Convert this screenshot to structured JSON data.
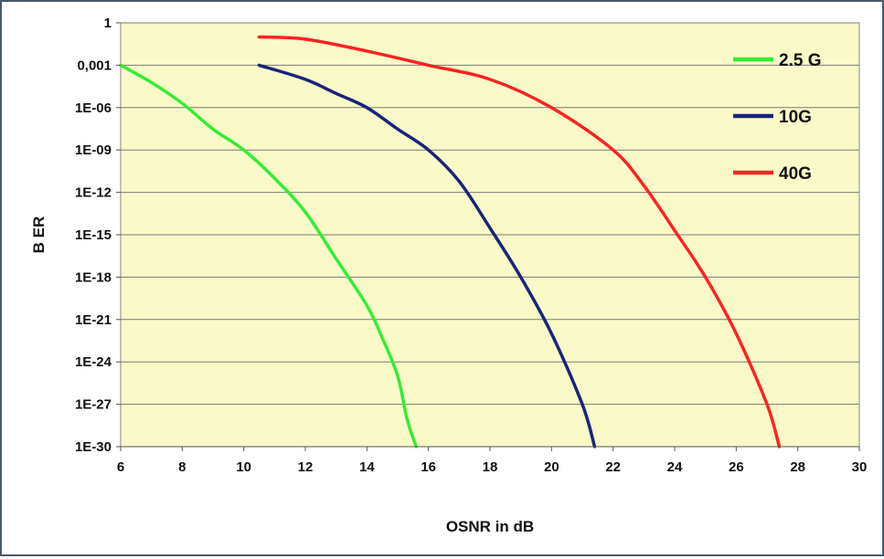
{
  "chart_data": {
    "type": "line",
    "title": "",
    "xlabel": "OSNR in dB",
    "ylabel": "B ER",
    "xlim": [
      6,
      30
    ],
    "x_ticks": [
      6,
      8,
      10,
      12,
      14,
      16,
      18,
      20,
      22,
      24,
      26,
      28,
      30
    ],
    "y_scale": "log",
    "y_ticks": [
      {
        "label": "1",
        "exp": 0
      },
      {
        "label": "0,001",
        "exp": -3
      },
      {
        "label": "1E-06",
        "exp": -6
      },
      {
        "label": "1E-09",
        "exp": -9
      },
      {
        "label": "1E-12",
        "exp": -12
      },
      {
        "label": "1E-15",
        "exp": -15
      },
      {
        "label": "1E-18",
        "exp": -18
      },
      {
        "label": "1E-21",
        "exp": -21
      },
      {
        "label": "1E-24",
        "exp": -24
      },
      {
        "label": "1E-27",
        "exp": -27
      },
      {
        "label": "1E-30",
        "exp": -30
      }
    ],
    "grid": {
      "horizontal": true,
      "vertical": false
    },
    "legend_position": "top-right",
    "plot_background": "#fafac8",
    "series": [
      {
        "name": "2.5 G",
        "color": "#33ee33",
        "points": [
          [
            6,
            0.001
          ],
          [
            7,
            6e-05
          ],
          [
            8,
            2e-06
          ],
          [
            9,
            3e-08
          ],
          [
            10,
            1e-09
          ],
          [
            11,
            1e-11
          ],
          [
            12,
            4e-14
          ],
          [
            13,
            2e-17
          ],
          [
            14,
            1e-20
          ],
          [
            14.5,
            5e-23
          ],
          [
            15,
            1e-25
          ],
          [
            15.3,
            1e-28
          ],
          [
            15.6,
            1e-30
          ]
        ]
      },
      {
        "name": "10G",
        "color": "#1a237e",
        "points": [
          [
            10.5,
            0.001
          ],
          [
            12,
            0.0001
          ],
          [
            13,
            1e-05
          ],
          [
            14,
            1e-06
          ],
          [
            15,
            3e-08
          ],
          [
            16,
            1e-09
          ],
          [
            17,
            6e-12
          ],
          [
            18,
            3e-15
          ],
          [
            19,
            1e-18
          ],
          [
            20,
            1e-22
          ],
          [
            21,
            1e-27
          ],
          [
            21.4,
            1e-30
          ]
        ]
      },
      {
        "name": "40G",
        "color": "#ff2222",
        "points": [
          [
            10.5,
            0.1
          ],
          [
            12,
            0.07
          ],
          [
            14,
            0.01
          ],
          [
            16,
            0.001
          ],
          [
            18,
            0.0001
          ],
          [
            20,
            1e-06
          ],
          [
            22,
            1e-09
          ],
          [
            23,
            3e-12
          ],
          [
            24,
            2e-15
          ],
          [
            25,
            1e-18
          ],
          [
            26,
            1e-22
          ],
          [
            27,
            1e-27
          ],
          [
            27.4,
            1e-30
          ]
        ]
      }
    ]
  }
}
